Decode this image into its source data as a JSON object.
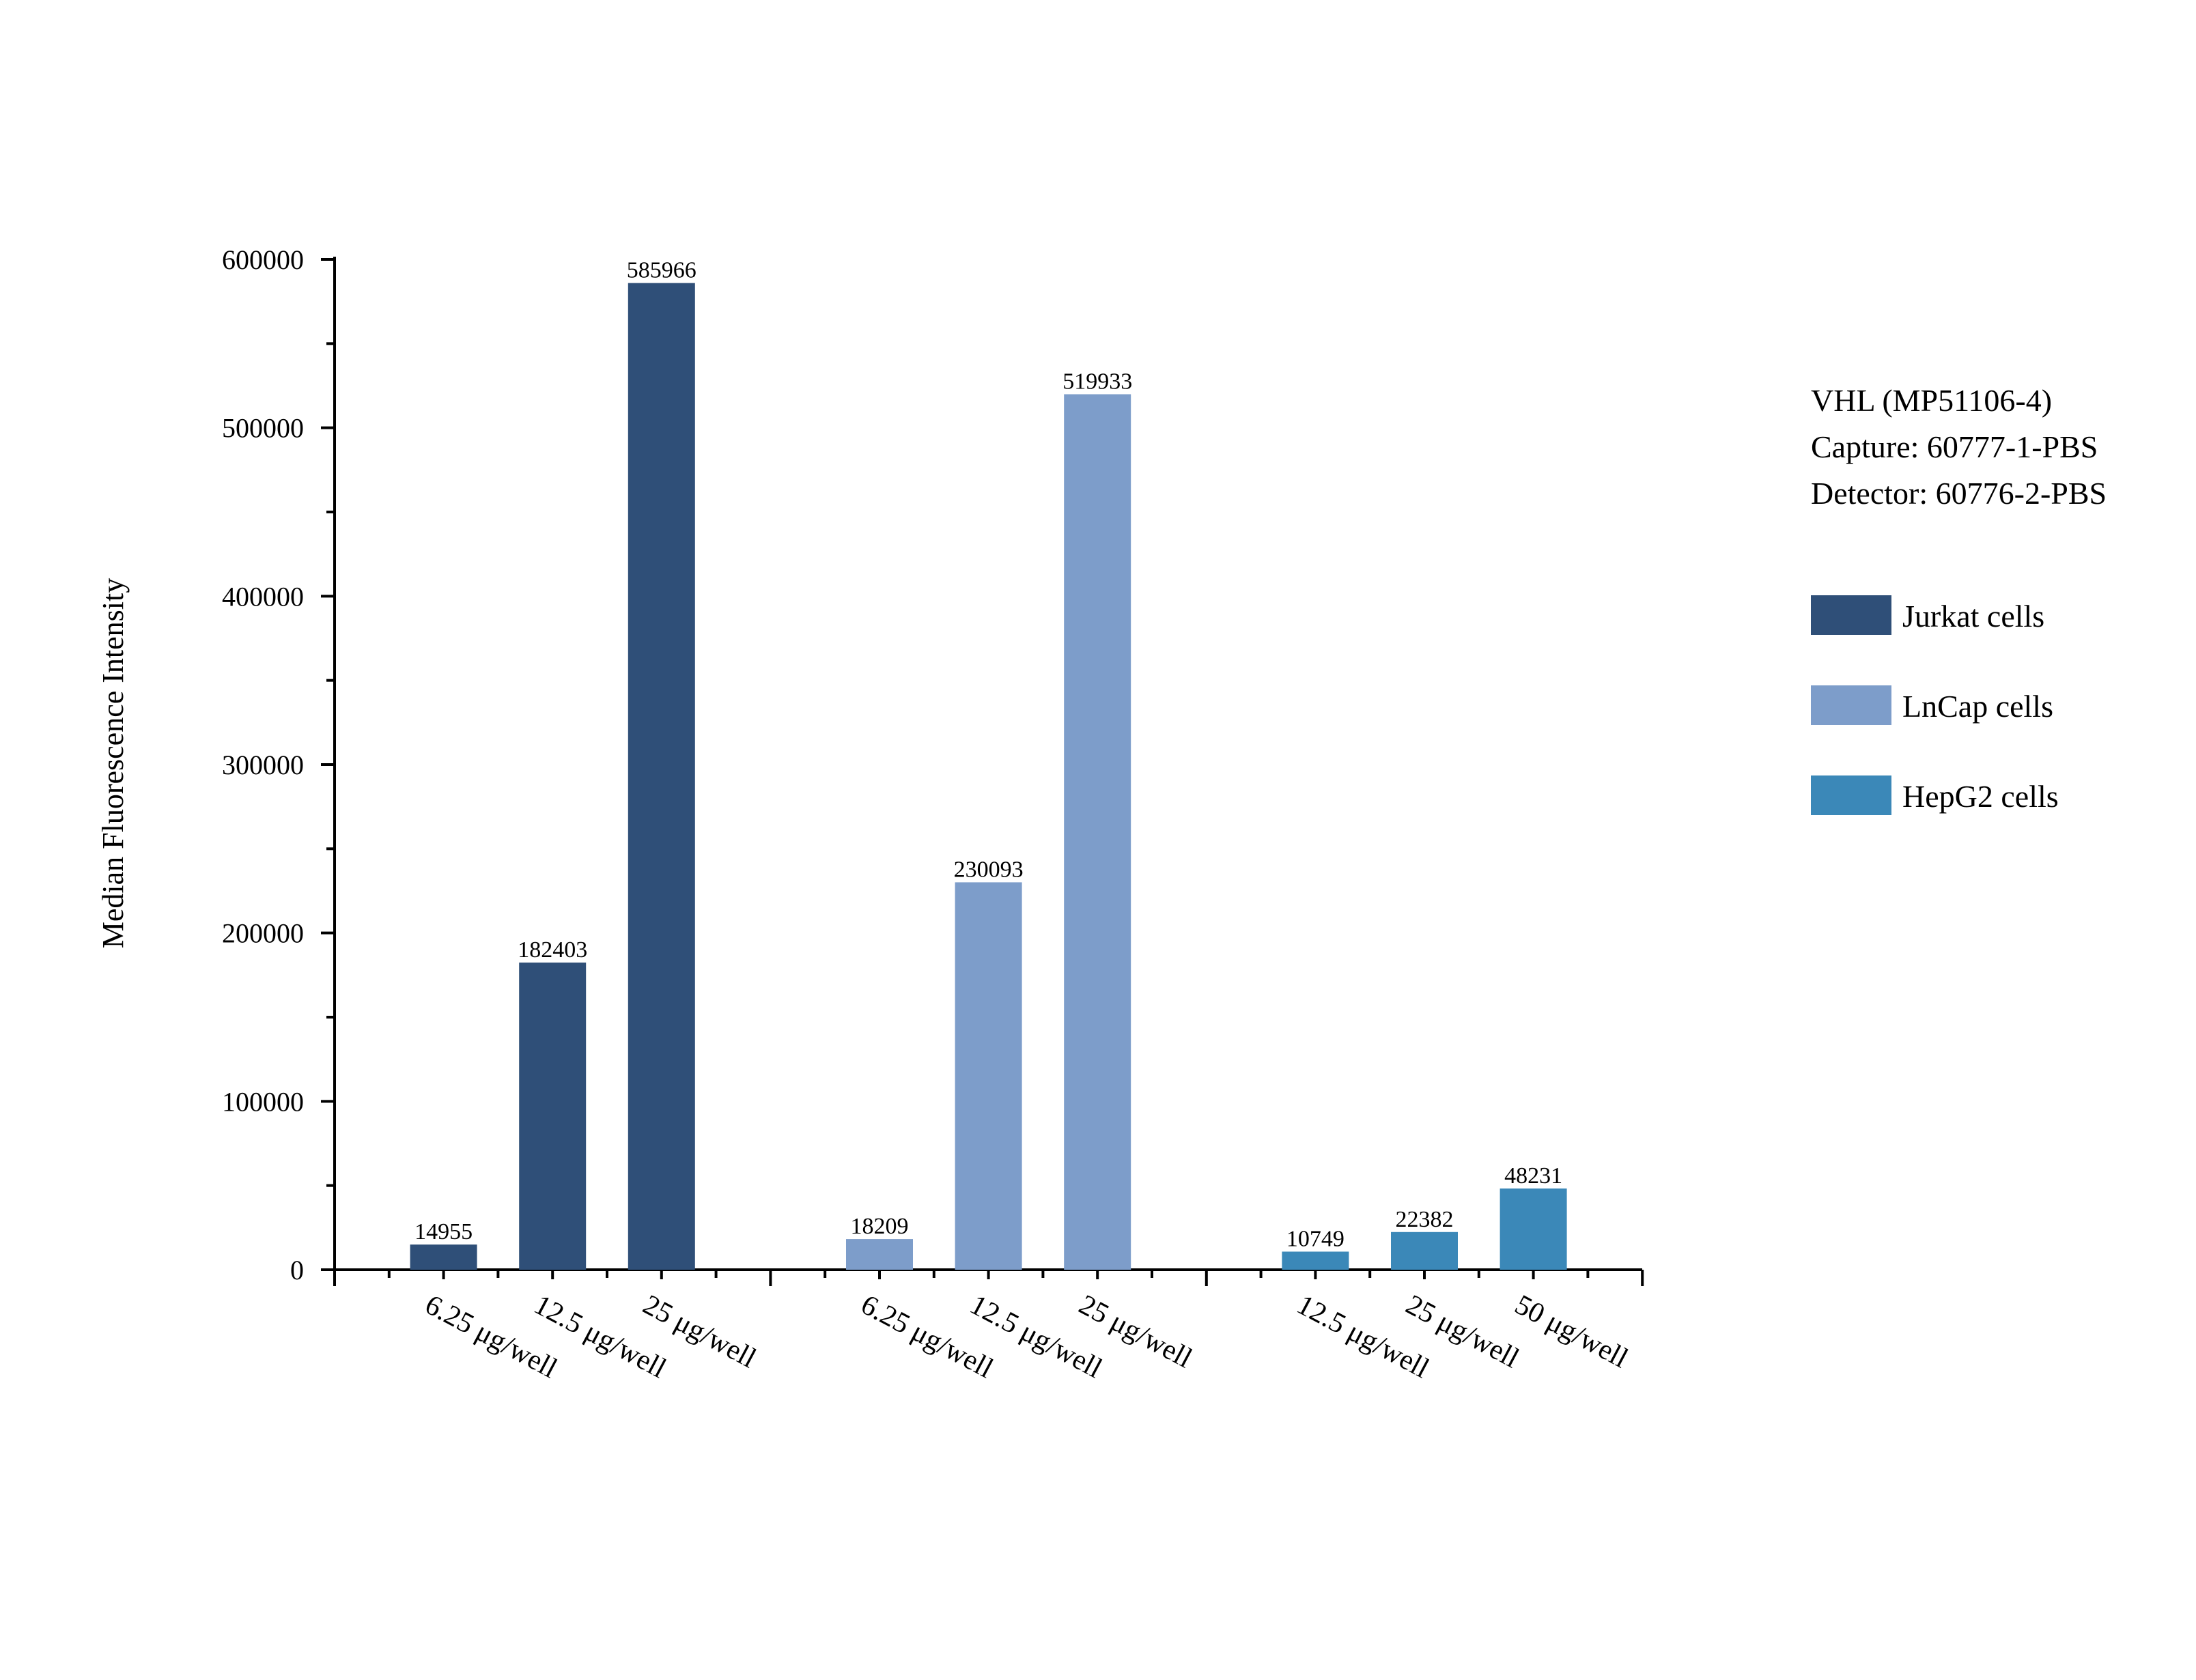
{
  "info": {
    "line1": "VHL (MP51106-4)",
    "line2": "Capture: 60777-1-PBS",
    "line3": "Detector: 60776-2-PBS"
  },
  "chart_data": {
    "type": "bar",
    "ylabel": "Median Fluorescence Intensity",
    "xlabel": "",
    "ylim": [
      0,
      600000
    ],
    "yticks": [
      0,
      100000,
      200000,
      300000,
      400000,
      500000,
      600000
    ],
    "ytick_labels": [
      "0",
      "100000",
      "200000",
      "300000",
      "400000",
      "500000",
      "600000"
    ],
    "grid": false,
    "legend_position": "right",
    "series": [
      {
        "name": "Jurkat cells",
        "color": "#2f4f78",
        "categories": [
          "6.25 μg/well",
          "12.5 μg/well",
          "25 μg/well"
        ],
        "values": [
          14955,
          182403,
          585966
        ],
        "labels": [
          "14955",
          "182403",
          "585966"
        ]
      },
      {
        "name": "LnCap cells",
        "color": "#7d9dca",
        "categories": [
          "6.25 μg/well",
          "12.5 μg/well",
          "25 μg/well"
        ],
        "values": [
          18209,
          230093,
          519933
        ],
        "labels": [
          "18209",
          "230093",
          "519933"
        ]
      },
      {
        "name": "HepG2 cells",
        "color": "#3b88b8",
        "categories": [
          "12.5 μg/well",
          "25 μg/well",
          "50 μg/well"
        ],
        "values": [
          10749,
          22382,
          48231
        ],
        "labels": [
          "10749",
          "22382",
          "48231"
        ]
      }
    ]
  }
}
